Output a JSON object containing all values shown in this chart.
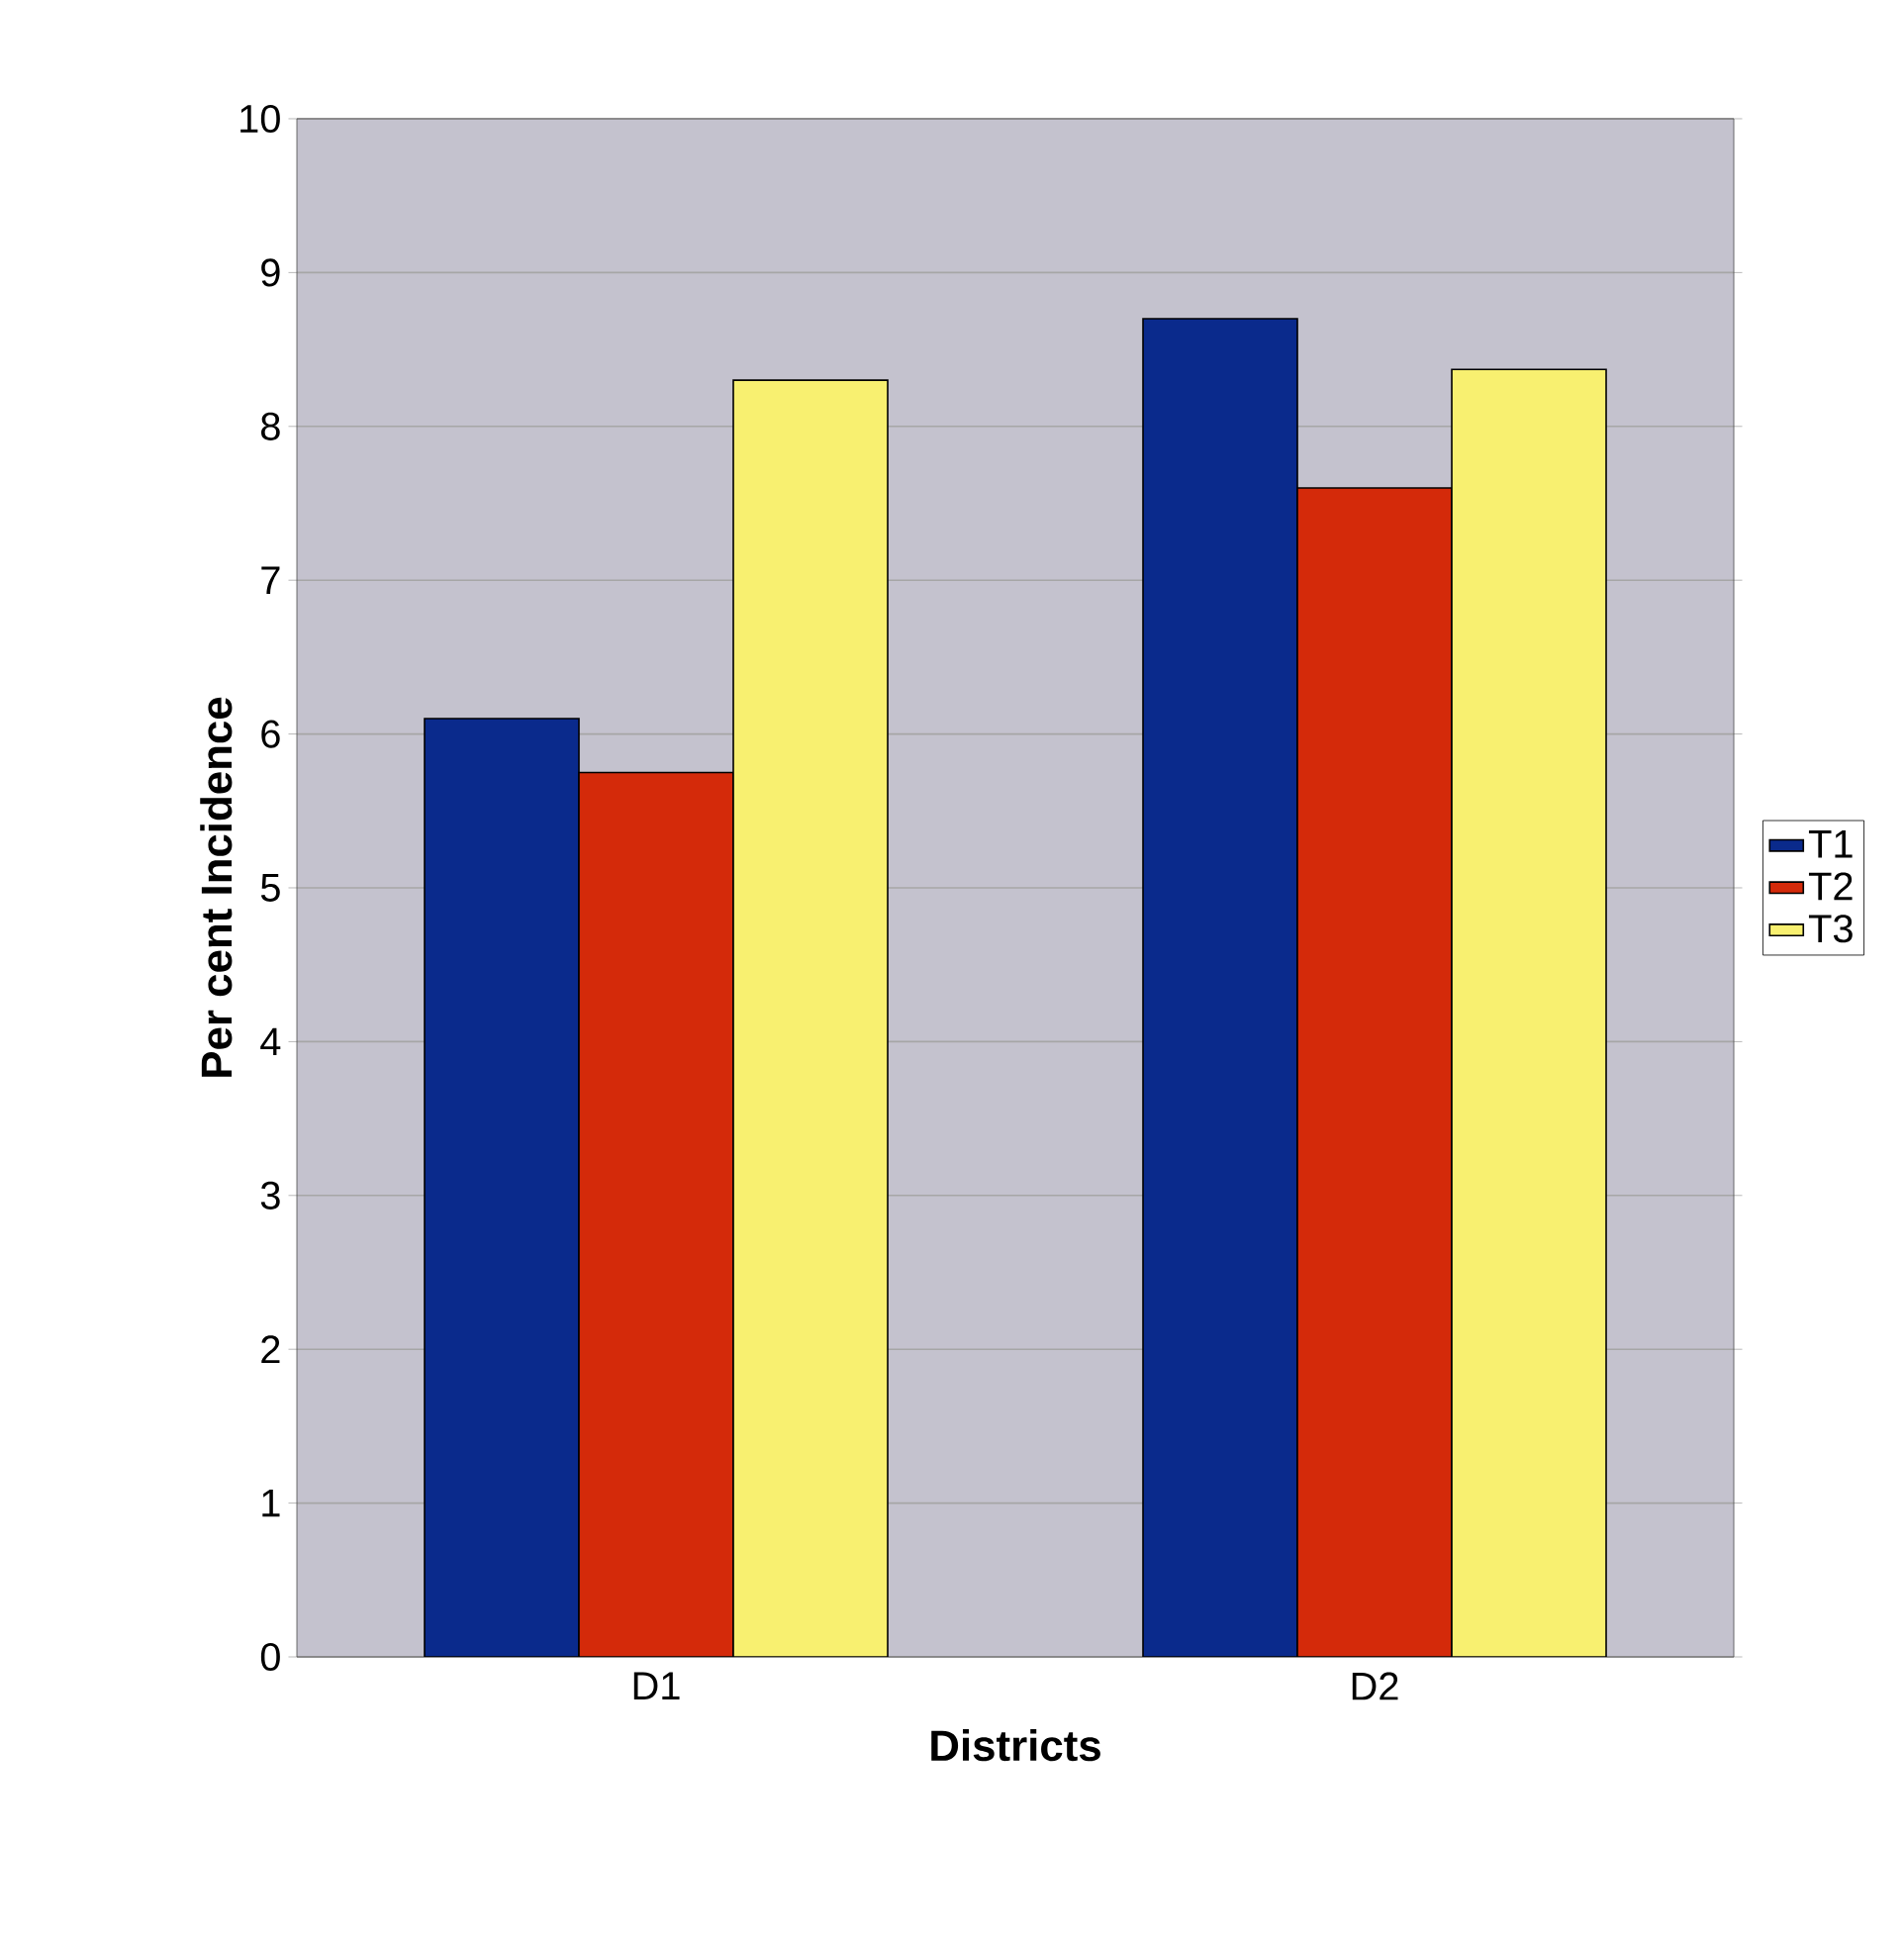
{
  "chart_data": {
    "type": "bar",
    "xlabel": "Districts",
    "ylabel": "Per cent Incidence",
    "categories": [
      "D1",
      "D2"
    ],
    "series": [
      {
        "name": "T1",
        "color": "#0a2a8c",
        "values": [
          6.1,
          8.7
        ]
      },
      {
        "name": "T2",
        "color": "#d42a0a",
        "values": [
          5.75,
          7.6
        ]
      },
      {
        "name": "T3",
        "color": "#f8f070",
        "values": [
          8.3,
          8.37
        ]
      }
    ],
    "ylim": [
      0,
      10
    ],
    "yticks": [
      0,
      1,
      2,
      3,
      4,
      5,
      6,
      7,
      8,
      9,
      10
    ],
    "grid": "y",
    "legend": "right"
  }
}
